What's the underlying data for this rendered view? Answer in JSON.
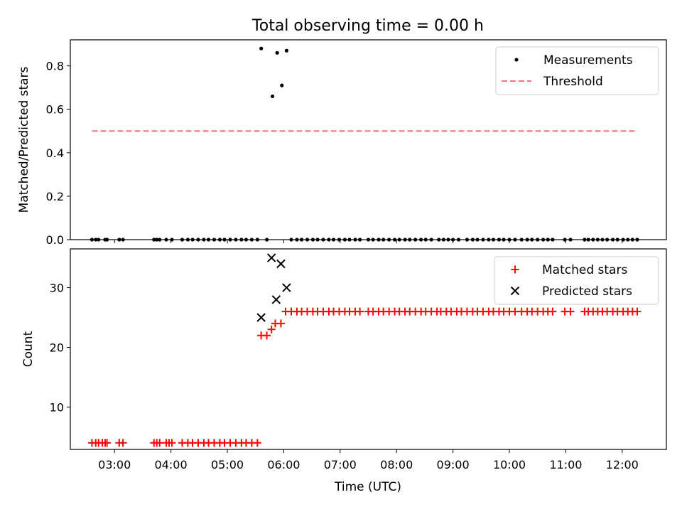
{
  "figure": {
    "title": "Total observing time = 0.00 h"
  },
  "chart_data": [
    {
      "type": "scatter",
      "title": "Total observing time = 0.00 h",
      "xlabel": "",
      "ylabel": "Matched/Predicted stars",
      "xlim": [
        "02:13",
        "12:47"
      ],
      "ylim": [
        0,
        0.92
      ],
      "yticks": [
        0.0,
        0.2,
        0.4,
        0.6,
        0.8
      ],
      "ytick_labels": [
        "0.0",
        "0.2",
        "0.4",
        "0.6",
        "0.8"
      ],
      "xticks": [
        "03:00",
        "04:00",
        "05:00",
        "06:00",
        "07:00",
        "08:00",
        "09:00",
        "10:00",
        "11:00",
        "12:00"
      ],
      "legend": {
        "placement": "top-right",
        "entries": [
          "Measurements",
          "Threshold"
        ]
      },
      "series": [
        {
          "name": "Measurements",
          "marker": "dot",
          "color": "#000000",
          "points": [
            {
              "x": "02:36",
              "y": 0
            },
            {
              "x": "02:40",
              "y": 0
            },
            {
              "x": "02:43",
              "y": 0
            },
            {
              "x": "02:50",
              "y": 0
            },
            {
              "x": "02:52",
              "y": 0
            },
            {
              "x": "03:05",
              "y": 0
            },
            {
              "x": "03:09",
              "y": 0
            },
            {
              "x": "03:42",
              "y": 0
            },
            {
              "x": "03:45",
              "y": 0
            },
            {
              "x": "03:48",
              "y": 0
            },
            {
              "x": "03:55",
              "y": 0
            },
            {
              "x": "04:01",
              "y": 0
            },
            {
              "x": "04:12",
              "y": 0
            },
            {
              "x": "04:18",
              "y": 0
            },
            {
              "x": "04:23",
              "y": 0
            },
            {
              "x": "04:29",
              "y": 0
            },
            {
              "x": "04:35",
              "y": 0
            },
            {
              "x": "04:40",
              "y": 0
            },
            {
              "x": "04:46",
              "y": 0
            },
            {
              "x": "04:52",
              "y": 0
            },
            {
              "x": "04:57",
              "y": 0
            },
            {
              "x": "05:03",
              "y": 0
            },
            {
              "x": "05:09",
              "y": 0
            },
            {
              "x": "05:15",
              "y": 0
            },
            {
              "x": "05:20",
              "y": 0
            },
            {
              "x": "05:26",
              "y": 0
            },
            {
              "x": "05:32",
              "y": 0
            },
            {
              "x": "05:36",
              "y": 0.88
            },
            {
              "x": "05:42",
              "y": 0
            },
            {
              "x": "05:48",
              "y": 0.66
            },
            {
              "x": "05:53",
              "y": 0.86
            },
            {
              "x": "05:58",
              "y": 0.71
            },
            {
              "x": "06:03",
              "y": 0.87
            },
            {
              "x": "06:08",
              "y": 0
            },
            {
              "x": "06:14",
              "y": 0
            },
            {
              "x": "06:19",
              "y": 0
            },
            {
              "x": "06:25",
              "y": 0
            },
            {
              "x": "06:31",
              "y": 0
            },
            {
              "x": "06:36",
              "y": 0
            },
            {
              "x": "06:42",
              "y": 0
            },
            {
              "x": "06:48",
              "y": 0
            },
            {
              "x": "06:53",
              "y": 0
            },
            {
              "x": "06:59",
              "y": 0
            },
            {
              "x": "07:05",
              "y": 0
            },
            {
              "x": "07:10",
              "y": 0
            },
            {
              "x": "07:16",
              "y": 0
            },
            {
              "x": "07:21",
              "y": 0
            },
            {
              "x": "07:30",
              "y": 0
            },
            {
              "x": "07:35",
              "y": 0
            },
            {
              "x": "07:41",
              "y": 0
            },
            {
              "x": "07:46",
              "y": 0
            },
            {
              "x": "07:52",
              "y": 0
            },
            {
              "x": "07:58",
              "y": 0
            },
            {
              "x": "08:03",
              "y": 0
            },
            {
              "x": "08:09",
              "y": 0
            },
            {
              "x": "08:14",
              "y": 0
            },
            {
              "x": "08:20",
              "y": 0
            },
            {
              "x": "08:26",
              "y": 0
            },
            {
              "x": "08:31",
              "y": 0
            },
            {
              "x": "08:37",
              "y": 0
            },
            {
              "x": "08:45",
              "y": 0
            },
            {
              "x": "08:50",
              "y": 0
            },
            {
              "x": "08:55",
              "y": 0
            },
            {
              "x": "09:00",
              "y": 0
            },
            {
              "x": "09:06",
              "y": 0
            },
            {
              "x": "09:15",
              "y": 0
            },
            {
              "x": "09:21",
              "y": 0
            },
            {
              "x": "09:26",
              "y": 0
            },
            {
              "x": "09:32",
              "y": 0
            },
            {
              "x": "09:38",
              "y": 0
            },
            {
              "x": "09:43",
              "y": 0
            },
            {
              "x": "09:49",
              "y": 0
            },
            {
              "x": "09:54",
              "y": 0
            },
            {
              "x": "10:00",
              "y": 0
            },
            {
              "x": "10:06",
              "y": 0
            },
            {
              "x": "10:13",
              "y": 0
            },
            {
              "x": "10:19",
              "y": 0
            },
            {
              "x": "10:24",
              "y": 0
            },
            {
              "x": "10:30",
              "y": 0
            },
            {
              "x": "10:36",
              "y": 0
            },
            {
              "x": "10:41",
              "y": 0
            },
            {
              "x": "10:46",
              "y": 0
            },
            {
              "x": "10:59",
              "y": 0
            },
            {
              "x": "11:05",
              "y": 0
            },
            {
              "x": "11:20",
              "y": 0
            },
            {
              "x": "11:24",
              "y": 0
            },
            {
              "x": "11:29",
              "y": 0
            },
            {
              "x": "11:34",
              "y": 0
            },
            {
              "x": "11:39",
              "y": 0
            },
            {
              "x": "11:44",
              "y": 0
            },
            {
              "x": "11:50",
              "y": 0
            },
            {
              "x": "11:55",
              "y": 0
            },
            {
              "x": "12:01",
              "y": 0
            },
            {
              "x": "12:06",
              "y": 0
            },
            {
              "x": "12:11",
              "y": 0
            },
            {
              "x": "12:16",
              "y": 0
            }
          ]
        },
        {
          "name": "Threshold",
          "type": "line",
          "style": "dashed",
          "color": "#ff7070",
          "points": [
            {
              "x": "02:36",
              "y": 0.5
            },
            {
              "x": "12:16",
              "y": 0.5
            }
          ]
        }
      ]
    },
    {
      "type": "scatter",
      "title": "",
      "xlabel": "Time (UTC)",
      "ylabel": "Count",
      "xlim": [
        "02:13",
        "12:47"
      ],
      "ylim": [
        2.9,
        36.5
      ],
      "yticks": [
        10,
        20,
        30
      ],
      "ytick_labels": [
        "10",
        "20",
        "30"
      ],
      "xticks": [
        "03:00",
        "04:00",
        "05:00",
        "06:00",
        "07:00",
        "08:00",
        "09:00",
        "10:00",
        "11:00",
        "12:00"
      ],
      "xtick_labels": [
        "03:00",
        "04:00",
        "05:00",
        "06:00",
        "07:00",
        "08:00",
        "09:00",
        "10:00",
        "11:00",
        "12:00"
      ],
      "legend": {
        "placement": "top-right",
        "entries": [
          "Matched stars",
          "Predicted stars"
        ]
      },
      "series": [
        {
          "name": "Matched stars",
          "marker": "plus",
          "color": "#ff0000",
          "points": [
            {
              "x": "02:36",
              "y": 4
            },
            {
              "x": "02:40",
              "y": 4
            },
            {
              "x": "02:43",
              "y": 4
            },
            {
              "x": "02:47",
              "y": 4
            },
            {
              "x": "02:50",
              "y": 4
            },
            {
              "x": "02:52",
              "y": 4
            },
            {
              "x": "03:05",
              "y": 4
            },
            {
              "x": "03:09",
              "y": 4
            },
            {
              "x": "03:42",
              "y": 4
            },
            {
              "x": "03:45",
              "y": 4
            },
            {
              "x": "03:48",
              "y": 4
            },
            {
              "x": "03:55",
              "y": 4
            },
            {
              "x": "03:58",
              "y": 4
            },
            {
              "x": "04:01",
              "y": 4
            },
            {
              "x": "04:12",
              "y": 4
            },
            {
              "x": "04:18",
              "y": 4
            },
            {
              "x": "04:23",
              "y": 4
            },
            {
              "x": "04:29",
              "y": 4
            },
            {
              "x": "04:35",
              "y": 4
            },
            {
              "x": "04:40",
              "y": 4
            },
            {
              "x": "04:46",
              "y": 4
            },
            {
              "x": "04:52",
              "y": 4
            },
            {
              "x": "04:57",
              "y": 4
            },
            {
              "x": "05:03",
              "y": 4
            },
            {
              "x": "05:09",
              "y": 4
            },
            {
              "x": "05:15",
              "y": 4
            },
            {
              "x": "05:20",
              "y": 4
            },
            {
              "x": "05:26",
              "y": 4
            },
            {
              "x": "05:32",
              "y": 4
            },
            {
              "x": "05:36",
              "y": 22
            },
            {
              "x": "05:42",
              "y": 22
            },
            {
              "x": "05:47",
              "y": 23
            },
            {
              "x": "05:51",
              "y": 24
            },
            {
              "x": "05:57",
              "y": 24
            },
            {
              "x": "06:02",
              "y": 26
            },
            {
              "x": "06:08",
              "y": 26
            },
            {
              "x": "06:14",
              "y": 26
            },
            {
              "x": "06:19",
              "y": 26
            },
            {
              "x": "06:25",
              "y": 26
            },
            {
              "x": "06:31",
              "y": 26
            },
            {
              "x": "06:36",
              "y": 26
            },
            {
              "x": "06:42",
              "y": 26
            },
            {
              "x": "06:48",
              "y": 26
            },
            {
              "x": "06:53",
              "y": 26
            },
            {
              "x": "06:59",
              "y": 26
            },
            {
              "x": "07:05",
              "y": 26
            },
            {
              "x": "07:10",
              "y": 26
            },
            {
              "x": "07:16",
              "y": 26
            },
            {
              "x": "07:21",
              "y": 26
            },
            {
              "x": "07:30",
              "y": 26
            },
            {
              "x": "07:35",
              "y": 26
            },
            {
              "x": "07:41",
              "y": 26
            },
            {
              "x": "07:46",
              "y": 26
            },
            {
              "x": "07:52",
              "y": 26
            },
            {
              "x": "07:58",
              "y": 26
            },
            {
              "x": "08:03",
              "y": 26
            },
            {
              "x": "08:09",
              "y": 26
            },
            {
              "x": "08:14",
              "y": 26
            },
            {
              "x": "08:20",
              "y": 26
            },
            {
              "x": "08:26",
              "y": 26
            },
            {
              "x": "08:31",
              "y": 26
            },
            {
              "x": "08:37",
              "y": 26
            },
            {
              "x": "08:43",
              "y": 26
            },
            {
              "x": "08:47",
              "y": 26
            },
            {
              "x": "08:53",
              "y": 26
            },
            {
              "x": "08:58",
              "y": 26
            },
            {
              "x": "09:04",
              "y": 26
            },
            {
              "x": "09:09",
              "y": 26
            },
            {
              "x": "09:15",
              "y": 26
            },
            {
              "x": "09:21",
              "y": 26
            },
            {
              "x": "09:26",
              "y": 26
            },
            {
              "x": "09:32",
              "y": 26
            },
            {
              "x": "09:38",
              "y": 26
            },
            {
              "x": "09:43",
              "y": 26
            },
            {
              "x": "09:49",
              "y": 26
            },
            {
              "x": "09:54",
              "y": 26
            },
            {
              "x": "10:00",
              "y": 26
            },
            {
              "x": "10:06",
              "y": 26
            },
            {
              "x": "10:13",
              "y": 26
            },
            {
              "x": "10:19",
              "y": 26
            },
            {
              "x": "10:24",
              "y": 26
            },
            {
              "x": "10:30",
              "y": 26
            },
            {
              "x": "10:36",
              "y": 26
            },
            {
              "x": "10:41",
              "y": 26
            },
            {
              "x": "10:46",
              "y": 26
            },
            {
              "x": "10:59",
              "y": 26
            },
            {
              "x": "11:05",
              "y": 26
            },
            {
              "x": "11:20",
              "y": 26
            },
            {
              "x": "11:24",
              "y": 26
            },
            {
              "x": "11:29",
              "y": 26
            },
            {
              "x": "11:34",
              "y": 26
            },
            {
              "x": "11:39",
              "y": 26
            },
            {
              "x": "11:44",
              "y": 26
            },
            {
              "x": "11:50",
              "y": 26
            },
            {
              "x": "11:55",
              "y": 26
            },
            {
              "x": "12:01",
              "y": 26
            },
            {
              "x": "12:06",
              "y": 26
            },
            {
              "x": "12:11",
              "y": 26
            },
            {
              "x": "12:16",
              "y": 26
            }
          ]
        },
        {
          "name": "Predicted stars",
          "marker": "x",
          "color": "#000000",
          "points": [
            {
              "x": "05:36",
              "y": 25
            },
            {
              "x": "05:47",
              "y": 35
            },
            {
              "x": "05:52",
              "y": 28
            },
            {
              "x": "05:57",
              "y": 34
            },
            {
              "x": "06:03",
              "y": 30
            }
          ]
        }
      ]
    }
  ]
}
